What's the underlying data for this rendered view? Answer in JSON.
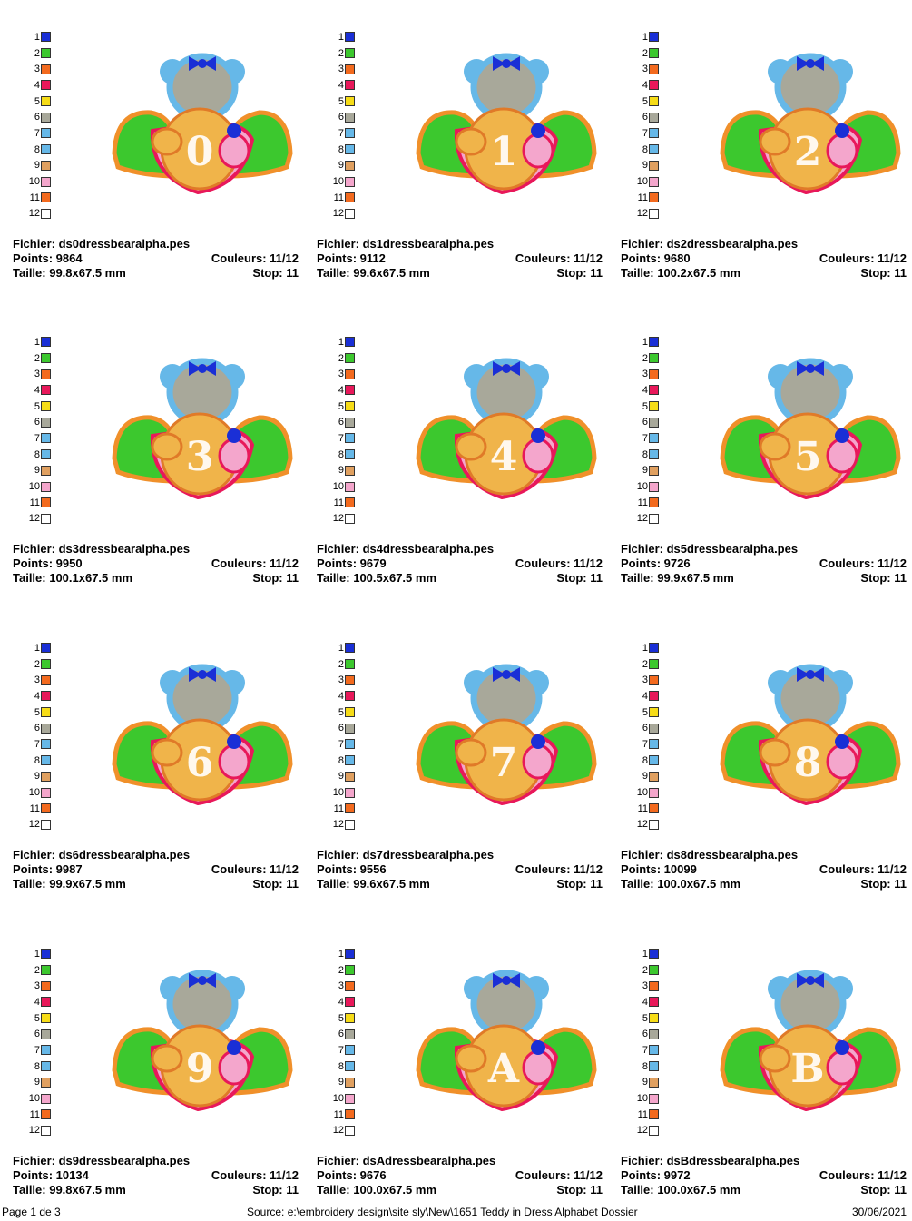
{
  "palette": [
    "#1a2fd6",
    "#3cc82e",
    "#f36a1e",
    "#e8185a",
    "#f6dc17",
    "#a8a89a",
    "#66b8e8",
    "#66b8e8",
    "#e0a060",
    "#f4a6cc",
    "#f36a1e",
    "#ffffff"
  ],
  "swatch_numbers": [
    "1",
    "2",
    "3",
    "4",
    "5",
    "6",
    "7",
    "8",
    "9",
    "10",
    "11",
    "12"
  ],
  "cards": [
    {
      "letter": "0",
      "file": "Fichier: ds0dressbearalpha.pes",
      "points": "Points: 9864",
      "colors": "Couleurs: 11/12",
      "size": "Taille: 99.8x67.5 mm",
      "stop": "Stop: 11"
    },
    {
      "letter": "1",
      "file": "Fichier: ds1dressbearalpha.pes",
      "points": "Points: 9112",
      "colors": "Couleurs: 11/12",
      "size": "Taille: 99.6x67.5 mm",
      "stop": "Stop: 11"
    },
    {
      "letter": "2",
      "file": "Fichier: ds2dressbearalpha.pes",
      "points": "Points: 9680",
      "colors": "Couleurs: 11/12",
      "size": "Taille: 100.2x67.5 mm",
      "stop": "Stop: 11"
    },
    {
      "letter": "3",
      "file": "Fichier: ds3dressbearalpha.pes",
      "points": "Points: 9950",
      "colors": "Couleurs: 11/12",
      "size": "Taille: 100.1x67.5 mm",
      "stop": "Stop: 11"
    },
    {
      "letter": "4",
      "file": "Fichier: ds4dressbearalpha.pes",
      "points": "Points: 9679",
      "colors": "Couleurs: 11/12",
      "size": "Taille: 100.5x67.5 mm",
      "stop": "Stop: 11"
    },
    {
      "letter": "5",
      "file": "Fichier: ds5dressbearalpha.pes",
      "points": "Points: 9726",
      "colors": "Couleurs: 11/12",
      "size": "Taille: 99.9x67.5 mm",
      "stop": "Stop: 11"
    },
    {
      "letter": "6",
      "file": "Fichier: ds6dressbearalpha.pes",
      "points": "Points: 9987",
      "colors": "Couleurs: 11/12",
      "size": "Taille: 99.9x67.5 mm",
      "stop": "Stop: 11"
    },
    {
      "letter": "7",
      "file": "Fichier: ds7dressbearalpha.pes",
      "points": "Points: 9556",
      "colors": "Couleurs: 11/12",
      "size": "Taille: 99.6x67.5 mm",
      "stop": "Stop: 11"
    },
    {
      "letter": "8",
      "file": "Fichier: ds8dressbearalpha.pes",
      "points": "Points: 10099",
      "colors": "Couleurs: 11/12",
      "size": "Taille: 100.0x67.5 mm",
      "stop": "Stop: 11"
    },
    {
      "letter": "9",
      "file": "Fichier: ds9dressbearalpha.pes",
      "points": "Points: 10134",
      "colors": "Couleurs: 11/12",
      "size": "Taille: 99.8x67.5 mm",
      "stop": "Stop: 11"
    },
    {
      "letter": "A",
      "file": "Fichier: dsAdressbearalpha.pes",
      "points": "Points: 9676",
      "colors": "Couleurs: 11/12",
      "size": "Taille: 100.0x67.5 mm",
      "stop": "Stop: 11"
    },
    {
      "letter": "B",
      "file": "Fichier: dsBdressbearalpha.pes",
      "points": "Points: 9972",
      "colors": "Couleurs: 11/12",
      "size": "Taille: 100.0x67.5 mm",
      "stop": "Stop: 11"
    }
  ],
  "footer": {
    "page": "Page 1 de 3",
    "source": "Source:  e:\\embroidery design\\site sly\\New\\1651 Teddy in Dress Alphabet Dossier",
    "date": "30/06/2021"
  }
}
